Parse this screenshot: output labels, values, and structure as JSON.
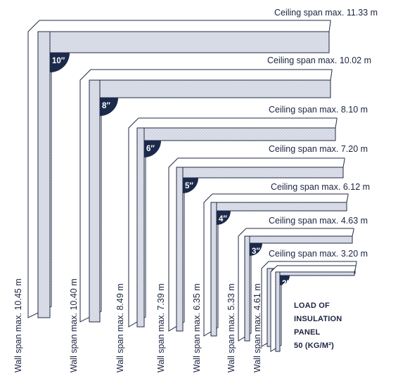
{
  "panels": [
    {
      "thickness": "10″",
      "ceiling_span": "Ceiling span max. 11.33 m",
      "wall_span": "Wall span max. 10.45 m"
    },
    {
      "thickness": "8″",
      "ceiling_span": "Ceiling span max. 10.02 m",
      "wall_span": "Wall span max. 10.40 m"
    },
    {
      "thickness": "6″",
      "ceiling_span": "Ceiling span max. 8.10 m",
      "wall_span": "Wall span max. 8.49 m"
    },
    {
      "thickness": "5″",
      "ceiling_span": "Ceiling span max. 7.20 m",
      "wall_span": "Wall span max. 7.39 m"
    },
    {
      "thickness": "4″",
      "ceiling_span": "Ceiling span max. 6.12 m",
      "wall_span": "Wall span max. 6.35 m"
    },
    {
      "thickness": "3″",
      "ceiling_span": "Ceiling span max. 4.63 m",
      "wall_span": "Wall span max. 5.33 m"
    },
    {
      "thickness": "",
      "ceiling_span": "Ceiling span max. 3.20 m",
      "wall_span": "Wall span max. 4.61 m"
    },
    {
      "thickness": "2″",
      "ceiling_span": "",
      "wall_span": ""
    }
  ],
  "load_note": [
    "LOAD OF",
    "INSULATION",
    "PANEL",
    "50 (KG/M²)"
  ],
  "colors": {
    "panel_face": "#dcdfe8",
    "panel_side": "#ffffff",
    "outline": "#1f2a44",
    "badge": "#1b2a4a",
    "text": "#1c2340"
  }
}
